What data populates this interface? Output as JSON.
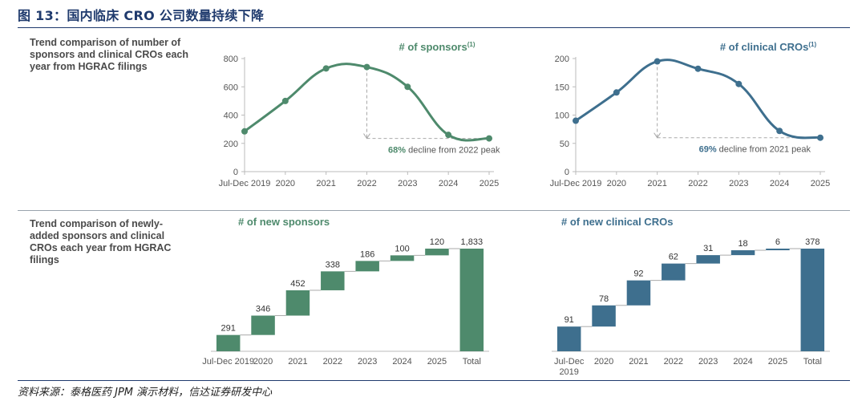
{
  "figure_title": "图 13：国内临床 CRO 公司数量持续下降",
  "section_top": "Trend comparison of number of sponsors and clinical CROs each year from HGRAC filings",
  "section_bottom": "Trend comparison of newly-added sponsors and clinical CROs each year from HGRAC filings",
  "source": "资料来源：泰格医药 JPM 演示材料，信达证券研发中心",
  "colors": {
    "green": "#4e8a6c",
    "blue": "#3e6f8e",
    "gray_dash": "#a9a9a9"
  },
  "chart_data": [
    {
      "type": "line",
      "title": "# of sponsors",
      "title_sup": "(1)",
      "color": "#4e8a6c",
      "categories": [
        "Jul-Dec 2019",
        "2020",
        "2021",
        "2022",
        "2023",
        "2024",
        "2025"
      ],
      "values": [
        285,
        500,
        730,
        740,
        600,
        260,
        235
      ],
      "ylim": [
        0,
        800
      ],
      "yticks": [
        0,
        200,
        400,
        600,
        800
      ],
      "annotation": {
        "pct": "68%",
        "text": " decline from 2022 peak",
        "from_index": 3,
        "to_index": 6
      }
    },
    {
      "type": "line",
      "title": "# of clinical CROs",
      "title_sup": "(1)",
      "color": "#3e6f8e",
      "categories": [
        "Jul-Dec 2019",
        "2020",
        "2021",
        "2022",
        "2023",
        "2024",
        "2025"
      ],
      "values": [
        90,
        140,
        195,
        182,
        155,
        72,
        60
      ],
      "ylim": [
        0,
        200
      ],
      "yticks": [
        0,
        50,
        100,
        150,
        200
      ],
      "annotation": {
        "pct": "69%",
        "text": " decline from 2021 peak",
        "from_index": 2,
        "to_index": 6
      }
    },
    {
      "type": "bar",
      "subtype": "waterfall",
      "title": "# of new sponsors",
      "color": "#4e8a6c",
      "categories": [
        "Jul-Dec 2019",
        "2020",
        "2021",
        "2022",
        "2023",
        "2024",
        "2025",
        "Total"
      ],
      "values": [
        291,
        346,
        452,
        338,
        186,
        100,
        120,
        1833
      ],
      "labels": [
        "291",
        "346",
        "452",
        "338",
        "186",
        "100",
        "120",
        "1,833"
      ]
    },
    {
      "type": "bar",
      "subtype": "waterfall",
      "title": "# of new clinical CROs",
      "color": "#3e6f8e",
      "categories": [
        "Jul-Dec 2019",
        "2020",
        "2021",
        "2022",
        "2023",
        "2024",
        "2025",
        "Total"
      ],
      "values": [
        91,
        78,
        92,
        62,
        31,
        18,
        6,
        378
      ],
      "labels": [
        "91",
        "78",
        "92",
        "62",
        "31",
        "18",
        "6",
        "378"
      ]
    }
  ]
}
